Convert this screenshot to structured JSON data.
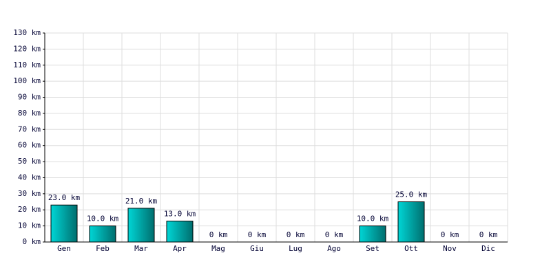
{
  "chart_data": {
    "type": "bar",
    "categories": [
      "Gen",
      "Feb",
      "Mar",
      "Apr",
      "Mag",
      "Giu",
      "Lug",
      "Ago",
      "Set",
      "Ott",
      "Nov",
      "Dic"
    ],
    "values": [
      23,
      10,
      21,
      13,
      0,
      0,
      0,
      0,
      10,
      25,
      0,
      0
    ],
    "value_labels": [
      "23.0 km",
      "10.0 km",
      "21.0 km",
      "13.0 km",
      "0 km",
      "0 km",
      "0 km",
      "0 km",
      "10.0 km",
      "25.0 km",
      "0 km",
      "0 km"
    ],
    "color": "#00d6d6",
    "ylim": [
      0,
      130
    ],
    "yticks": [
      {
        "value": 0,
        "label": "0 km"
      },
      {
        "value": 10,
        "label": "10 km"
      },
      {
        "value": 20,
        "label": "20 km"
      },
      {
        "value": 30,
        "label": "30 km"
      },
      {
        "value": 40,
        "label": "40 km"
      },
      {
        "value": 50,
        "label": "50 km"
      },
      {
        "value": 60,
        "label": "60 km"
      },
      {
        "value": 70,
        "label": "70 km"
      },
      {
        "value": 80,
        "label": "80 km"
      },
      {
        "value": 90,
        "label": "90 km"
      },
      {
        "value": 100,
        "label": "100 km"
      },
      {
        "value": 110,
        "label": "110 km"
      },
      {
        "value": 120,
        "label": "120 km"
      },
      {
        "value": 130,
        "label": "130 km"
      }
    ],
    "grid": true
  }
}
